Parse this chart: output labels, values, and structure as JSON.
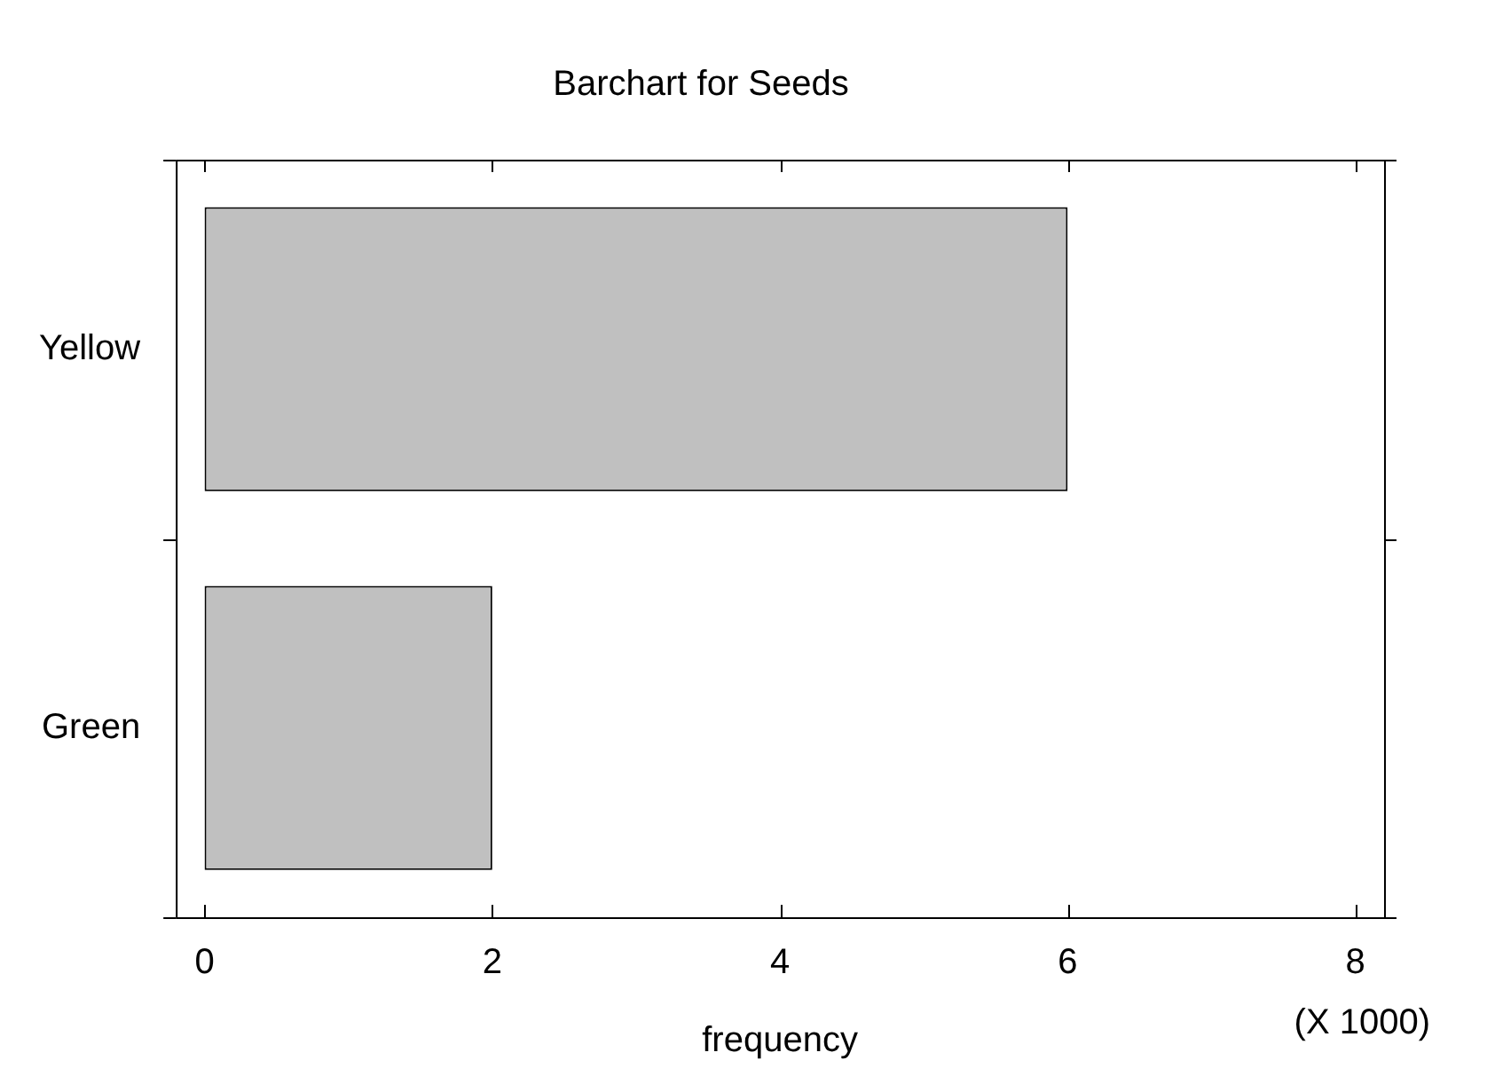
{
  "chart_data": {
    "type": "bar",
    "orientation": "horizontal",
    "title": "Barchart for Seeds",
    "xlabel": "frequency",
    "categories": [
      "Yellow",
      "Green"
    ],
    "values": [
      6.0,
      2.0
    ],
    "color": "#c0c0c0",
    "xlim": [
      -0.2,
      8.2
    ],
    "xticks": [
      0,
      2,
      4,
      6,
      8
    ],
    "annotations": [
      "(X 1000)"
    ],
    "grid": false,
    "legend": false
  }
}
